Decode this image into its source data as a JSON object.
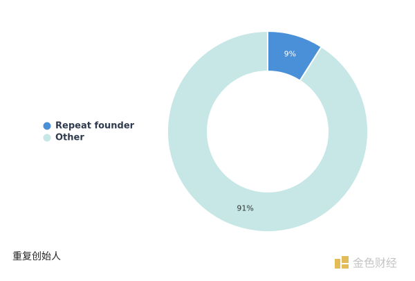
{
  "chart_data": {
    "type": "donut",
    "categories": [
      "Repeat founder",
      "Other"
    ],
    "values": [
      9,
      91
    ],
    "value_labels": [
      "9%",
      "91%"
    ],
    "colors": [
      "#4a90d9",
      "#c6e7e6"
    ],
    "legend": "left",
    "caption": "重复创始人",
    "watermark": "金色财经"
  }
}
